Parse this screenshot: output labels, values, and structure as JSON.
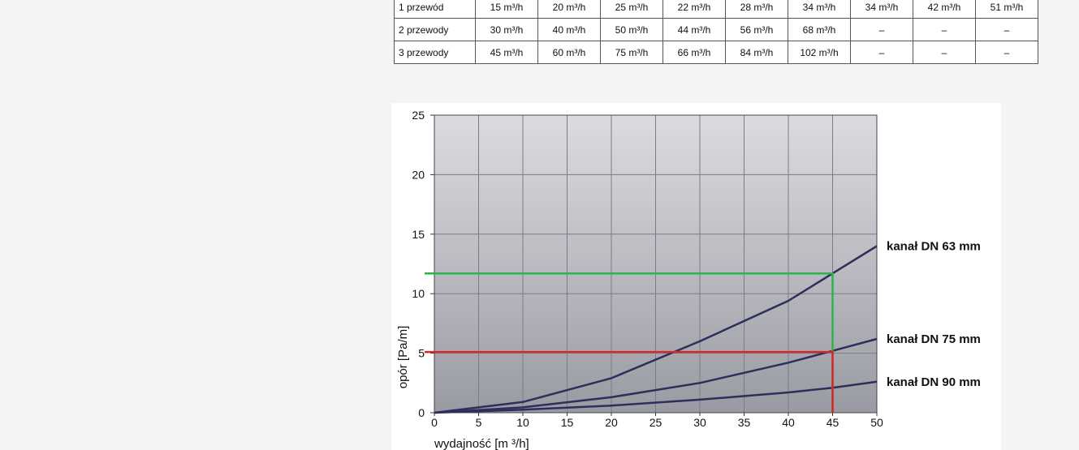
{
  "table": {
    "rows": [
      {
        "label": "1 przewód",
        "cells": [
          "15 m³/h",
          "20 m³/h",
          "25 m³/h",
          "22 m³/h",
          "28 m³/h",
          "34 m³/h",
          "34 m³/h",
          "42 m³/h",
          "51 m³/h"
        ]
      },
      {
        "label": "2 przewody",
        "cells": [
          "30 m³/h",
          "40 m³/h",
          "50 m³/h",
          "44 m³/h",
          "56 m³/h",
          "68 m³/h",
          "–",
          "–",
          "–"
        ]
      },
      {
        "label": "3 przewody",
        "cells": [
          "45 m³/h",
          "60 m³/h",
          "75 m³/h",
          "66 m³/h",
          "84 m³/h",
          "102 m³/h",
          "–",
          "–",
          "–"
        ]
      }
    ]
  },
  "chart_data": {
    "type": "line",
    "xlabel": "wydajność  [m ³/h]",
    "ylabel": "opór  [Pa/m]",
    "xlim": [
      0,
      50
    ],
    "ylim": [
      0,
      25
    ],
    "xticks": [
      0,
      5,
      10,
      15,
      20,
      25,
      30,
      35,
      40,
      45,
      50
    ],
    "yticks": [
      0,
      5,
      10,
      15,
      20,
      25
    ],
    "grid": true,
    "series": [
      {
        "name": "kanał DN 63 mm",
        "color": "#2e2e5c",
        "x": [
          0,
          10,
          20,
          30,
          40,
          45,
          50
        ],
        "y": [
          0,
          0.9,
          2.9,
          6.0,
          9.4,
          11.7,
          14.0
        ]
      },
      {
        "name": "kanał DN 75 mm",
        "color": "#2e2e5c",
        "x": [
          0,
          10,
          20,
          30,
          40,
          45,
          50
        ],
        "y": [
          0,
          0.45,
          1.3,
          2.5,
          4.2,
          5.2,
          6.2
        ]
      },
      {
        "name": "kanał DN 90 mm",
        "color": "#2e2e5c",
        "x": [
          0,
          10,
          20,
          30,
          40,
          45,
          50
        ],
        "y": [
          0,
          0.25,
          0.6,
          1.1,
          1.7,
          2.1,
          2.6
        ]
      }
    ],
    "annotations": [
      {
        "name": "green-guide",
        "color": "#2db34a",
        "x": 45,
        "y": 11.7
      },
      {
        "name": "red-guide",
        "color": "#d8262d",
        "x": 45,
        "y": 5.1
      }
    ]
  }
}
